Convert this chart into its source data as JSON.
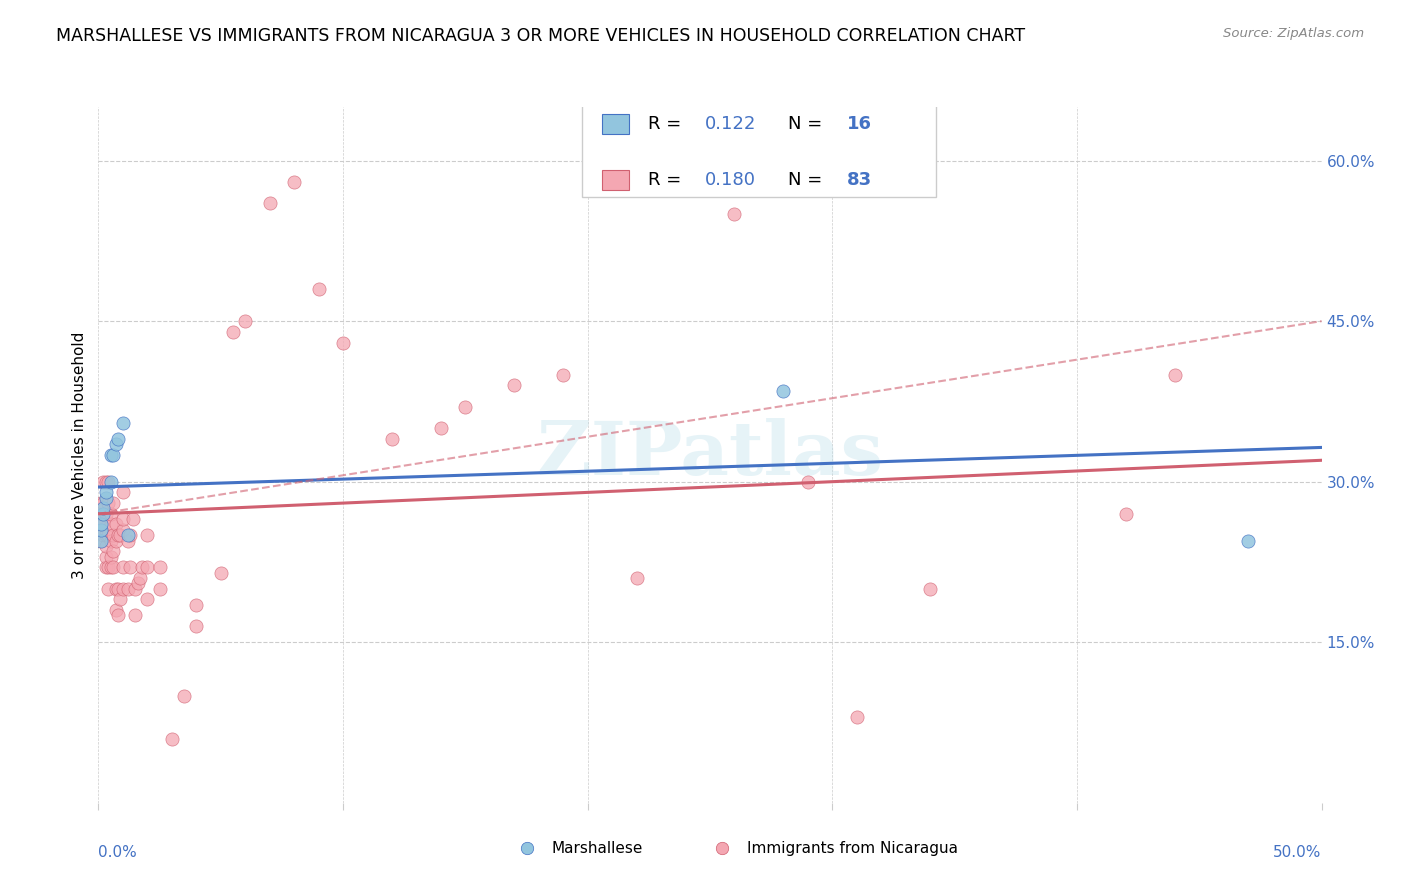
{
  "title": "MARSHALLESE VS IMMIGRANTS FROM NICARAGUA 3 OR MORE VEHICLES IN HOUSEHOLD CORRELATION CHART",
  "source": "Source: ZipAtlas.com",
  "ylabel": "3 or more Vehicles in Household",
  "xlim": [
    0.0,
    0.5
  ],
  "ylim": [
    0.0,
    0.65
  ],
  "xtick_left_label": "0.0%",
  "xtick_right_label": "50.0%",
  "yticks_right": [
    0.15,
    0.3,
    0.45,
    0.6
  ],
  "ytick_labels_right": [
    "15.0%",
    "30.0%",
    "45.0%",
    "60.0%"
  ],
  "color_blue": "#92c5de",
  "color_pink": "#f4a7b2",
  "color_blue_line": "#4472c4",
  "color_pink_line": "#d06070",
  "color_blue_text": "#4472c4",
  "watermark": "ZIPatlas",
  "marshallese_x": [
    0.001,
    0.001,
    0.001,
    0.002,
    0.002,
    0.003,
    0.003,
    0.005,
    0.005,
    0.006,
    0.007,
    0.008,
    0.01,
    0.012,
    0.28,
    0.47
  ],
  "marshallese_y": [
    0.245,
    0.255,
    0.26,
    0.27,
    0.275,
    0.285,
    0.29,
    0.3,
    0.325,
    0.325,
    0.335,
    0.34,
    0.355,
    0.25,
    0.385,
    0.245
  ],
  "nicaragua_x": [
    0.001,
    0.001,
    0.001,
    0.001,
    0.001,
    0.001,
    0.002,
    0.002,
    0.002,
    0.002,
    0.002,
    0.003,
    0.003,
    0.003,
    0.003,
    0.003,
    0.003,
    0.004,
    0.004,
    0.004,
    0.004,
    0.004,
    0.005,
    0.005,
    0.005,
    0.005,
    0.005,
    0.006,
    0.006,
    0.006,
    0.006,
    0.007,
    0.007,
    0.007,
    0.007,
    0.008,
    0.008,
    0.008,
    0.009,
    0.009,
    0.01,
    0.01,
    0.01,
    0.01,
    0.01,
    0.012,
    0.012,
    0.013,
    0.013,
    0.014,
    0.015,
    0.015,
    0.016,
    0.017,
    0.018,
    0.02,
    0.02,
    0.02,
    0.025,
    0.025,
    0.03,
    0.035,
    0.04,
    0.04,
    0.05,
    0.055,
    0.06,
    0.07,
    0.08,
    0.09,
    0.1,
    0.12,
    0.14,
    0.15,
    0.17,
    0.19,
    0.22,
    0.26,
    0.29,
    0.31,
    0.34,
    0.42,
    0.44
  ],
  "nicaragua_y": [
    0.245,
    0.255,
    0.26,
    0.26,
    0.27,
    0.28,
    0.25,
    0.26,
    0.27,
    0.28,
    0.3,
    0.22,
    0.23,
    0.24,
    0.25,
    0.27,
    0.3,
    0.2,
    0.22,
    0.25,
    0.28,
    0.3,
    0.22,
    0.23,
    0.245,
    0.26,
    0.27,
    0.22,
    0.235,
    0.25,
    0.28,
    0.18,
    0.2,
    0.245,
    0.26,
    0.175,
    0.2,
    0.25,
    0.19,
    0.25,
    0.2,
    0.22,
    0.255,
    0.265,
    0.29,
    0.2,
    0.245,
    0.22,
    0.25,
    0.265,
    0.175,
    0.2,
    0.205,
    0.21,
    0.22,
    0.19,
    0.22,
    0.25,
    0.2,
    0.22,
    0.06,
    0.1,
    0.165,
    0.185,
    0.215,
    0.44,
    0.45,
    0.56,
    0.58,
    0.48,
    0.43,
    0.34,
    0.35,
    0.37,
    0.39,
    0.4,
    0.21,
    0.55,
    0.3,
    0.08,
    0.2,
    0.27,
    0.4
  ],
  "blue_line_x": [
    0.0,
    0.5
  ],
  "blue_line_y": [
    0.295,
    0.332
  ],
  "pink_line_x": [
    0.0,
    0.5
  ],
  "pink_line_y": [
    0.27,
    0.32
  ],
  "pink_dashed_line_x": [
    0.0,
    0.5
  ],
  "pink_dashed_line_y": [
    0.27,
    0.45
  ],
  "background_color": "#ffffff",
  "grid_color": "#cccccc",
  "legend_items": [
    {
      "color_fill": "#92c5de",
      "color_edge": "#4472c4",
      "r": "0.122",
      "n": "16"
    },
    {
      "color_fill": "#f4a7b2",
      "color_edge": "#d06070",
      "r": "0.180",
      "n": "83"
    }
  ],
  "bottom_legend": [
    {
      "label": "Marshallese",
      "color_fill": "#92c5de",
      "color_edge": "#4472c4"
    },
    {
      "label": "Immigrants from Nicaragua",
      "color_fill": "#f4a7b2",
      "color_edge": "#d06070"
    }
  ]
}
